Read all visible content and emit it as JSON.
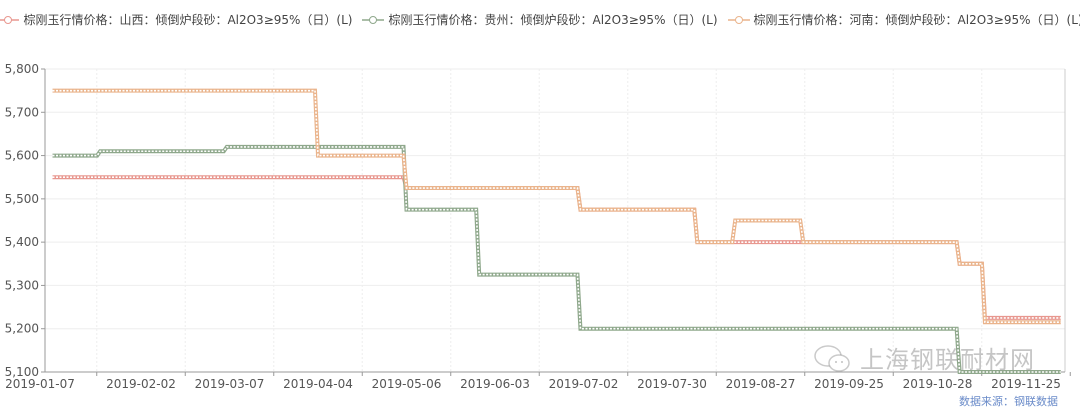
{
  "chart_data": {
    "type": "line",
    "step": true,
    "title": "",
    "xlabel": "",
    "ylabel": "",
    "ylim": [
      5100,
      5800
    ],
    "yticks": [
      "5,100",
      "5,200",
      "5,300",
      "5,400",
      "5,500",
      "5,600",
      "5,700",
      "5,800"
    ],
    "ytick_values": [
      5100,
      5200,
      5300,
      5400,
      5500,
      5600,
      5700,
      5800
    ],
    "xticks": [
      "2019-01-07",
      "2019-02-02",
      "2019-03-07",
      "2019-04-04",
      "2019-05-06",
      "2019-06-03",
      "2019-07-02",
      "2019-07-30",
      "2019-08-27",
      "2019-09-25",
      "2019-10-28",
      "2019-11-25"
    ],
    "x_end": "2019-12-06",
    "grid": true,
    "legend_position": "top",
    "series": [
      {
        "name": "棕刚玉行情价格：山西：倾倒炉段砂：Al2O3≥95%（日）(L)",
        "color": "#e8978f",
        "points": [
          [
            "2019-01-07",
            5550
          ],
          [
            "2019-05-06",
            5525
          ],
          [
            "2019-07-01",
            5475
          ],
          [
            "2019-08-07",
            5400
          ],
          [
            "2019-11-04",
            5350
          ],
          [
            "2019-11-12",
            5225
          ]
        ]
      },
      {
        "name": "棕刚玉行情价格：贵州：倾倒炉段砂：Al2O3≥95%（日）(L)",
        "color": "#8fa88c",
        "points": [
          [
            "2019-01-07",
            5600
          ],
          [
            "2019-01-21",
            5610
          ],
          [
            "2019-03-06",
            5620
          ],
          [
            "2019-05-06",
            5475
          ],
          [
            "2019-05-29",
            5325
          ],
          [
            "2019-07-01",
            5200
          ],
          [
            "2019-11-04",
            5100
          ]
        ]
      },
      {
        "name": "棕刚玉行情价格：河南：倾倒炉段砂：Al2O3≥95%（日）(L)",
        "color": "#eab48c",
        "points": [
          [
            "2019-01-07",
            5750
          ],
          [
            "2019-04-04",
            5600
          ],
          [
            "2019-05-06",
            5525
          ],
          [
            "2019-07-01",
            5475
          ],
          [
            "2019-08-07",
            5400
          ],
          [
            "2019-08-19",
            5450
          ],
          [
            "2019-09-10",
            5400
          ],
          [
            "2019-11-04",
            5350
          ],
          [
            "2019-11-12",
            5215
          ]
        ]
      }
    ]
  },
  "watermark": "上海钢联耐材网",
  "source": "数据来源：钢联数据"
}
